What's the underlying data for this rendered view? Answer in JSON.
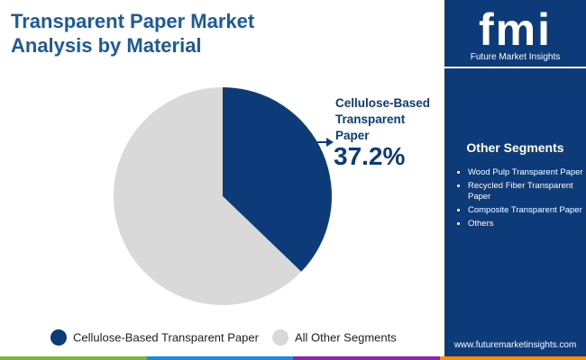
{
  "chart_data": {
    "type": "pie",
    "title": "Transparent Paper Market Analysis by Material",
    "categories": [
      "Cellulose-Based Transparent Paper",
      "All Other Segments"
    ],
    "values": [
      37.2,
      62.8
    ],
    "value_labels": [
      "37.2%",
      null
    ],
    "colors": [
      "#0d3b7a",
      "#d9d9d9"
    ]
  },
  "sidebar": {
    "logo": "fmi",
    "brand": "Future Market Insights",
    "heading": "Other Segments",
    "items": [
      "Wood Pulp Transparent Paper",
      "Recycled Fiber Transparent Paper",
      "Composite Transparent Paper",
      "Others"
    ],
    "website": "www.futuremarketinsights.com"
  }
}
